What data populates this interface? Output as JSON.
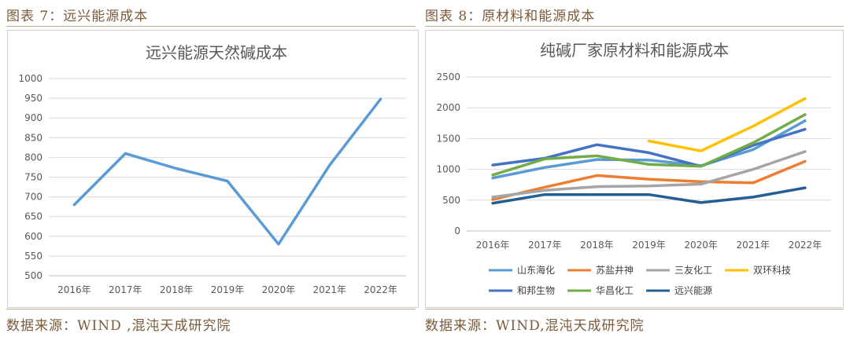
{
  "left": {
    "figure_label": "图表 7：远兴能源成本",
    "source": "数据来源：WIND ,混沌天成研究院"
  },
  "right": {
    "figure_label": "图表 8：原材料和能源成本",
    "source": "数据来源：WIND,混沌天成研究院"
  },
  "colors": {
    "rule": "#c7a88a",
    "caption": "#7a5a3a"
  },
  "chart_data": [
    {
      "type": "line",
      "title": "远兴能源天然碱成本",
      "categories": [
        "2016年",
        "2017年",
        "2018年",
        "2019年",
        "2020年",
        "2021年",
        "2022年"
      ],
      "ylim": [
        500,
        1000
      ],
      "yticks": [
        500,
        550,
        600,
        650,
        700,
        750,
        800,
        850,
        900,
        950,
        1000
      ],
      "grid": true,
      "series": [
        {
          "name": "远兴能源天然碱成本",
          "color": "#5b9bd5",
          "values": [
            680,
            810,
            772,
            740,
            580,
            780,
            948
          ]
        }
      ]
    },
    {
      "type": "line",
      "title": "纯碱厂家原材料和能源成本",
      "categories": [
        "2016年",
        "2017年",
        "2018年",
        "2019年",
        "2020年",
        "2021年",
        "2022年"
      ],
      "ylim": [
        0,
        2500
      ],
      "yticks": [
        0,
        500,
        1000,
        1500,
        2000,
        2500
      ],
      "grid": true,
      "legend_position": "bottom",
      "series": [
        {
          "name": "山东海化",
          "color": "#5b9bd5",
          "values": [
            860,
            1030,
            1160,
            1150,
            1060,
            1320,
            1790
          ]
        },
        {
          "name": "苏盐井神",
          "color": "#ed7d31",
          "values": [
            510,
            710,
            900,
            840,
            800,
            780,
            1130
          ]
        },
        {
          "name": "三友化工",
          "color": "#a5a5a5",
          "values": [
            550,
            660,
            720,
            730,
            760,
            1000,
            1290
          ]
        },
        {
          "name": "双环科技",
          "color": "#ffc000",
          "values": [
            null,
            null,
            null,
            1460,
            1300,
            1700,
            2150
          ]
        },
        {
          "name": "和邦生物",
          "color": "#4472c4",
          "values": [
            1070,
            1180,
            1400,
            1270,
            1050,
            1390,
            1650
          ]
        },
        {
          "name": "华昌化工",
          "color": "#70ad47",
          "values": [
            910,
            1170,
            1220,
            1080,
            1050,
            1430,
            1890
          ]
        },
        {
          "name": "远兴能源",
          "color": "#255e91",
          "values": [
            450,
            590,
            590,
            590,
            460,
            550,
            700
          ]
        }
      ]
    }
  ]
}
